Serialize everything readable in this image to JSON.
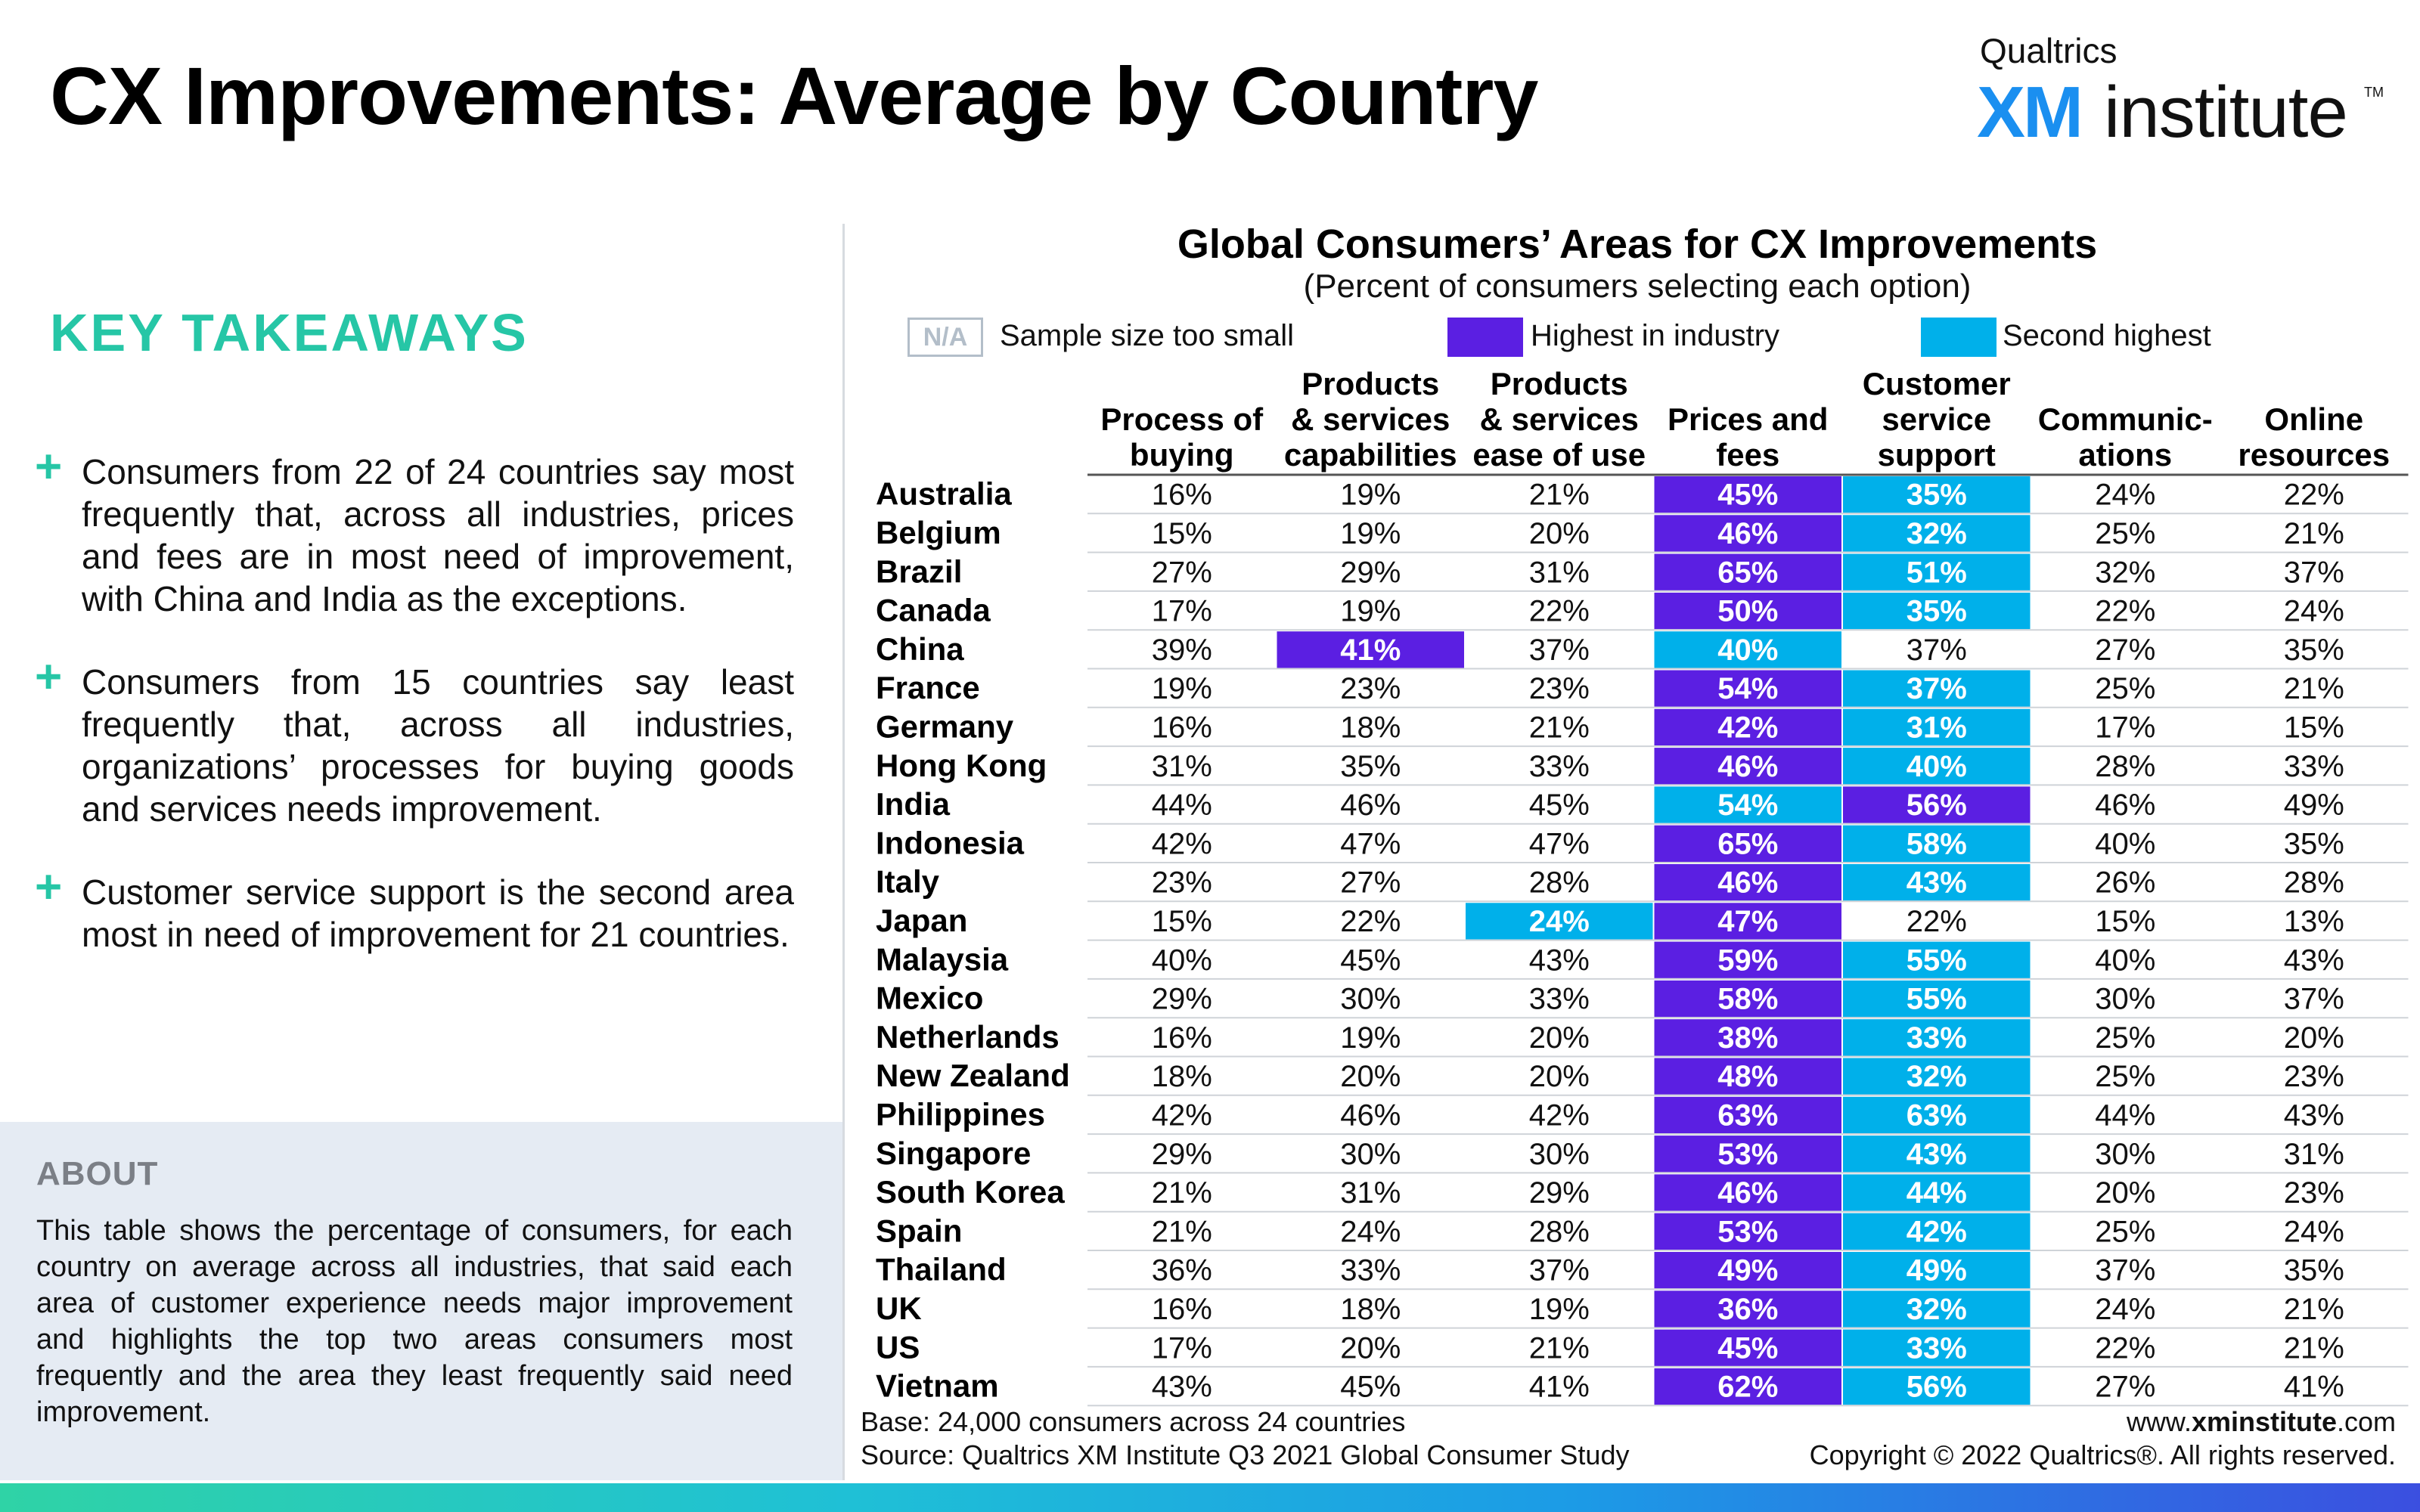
{
  "header": {
    "title": "CX Improvements: Average by Country",
    "logo_brand": "Qualtrics",
    "logo_xm": "XM",
    "logo_institute": "institute",
    "logo_tm": "TM"
  },
  "takeaways": {
    "heading": "KEY TAKEAWAYS",
    "bullets": [
      "Consumers from 22 of 24 countries say most frequently that, across all industries, prices and fees  are in most need of improvement, with China and India as the exceptions.",
      "Consumers from 15 countries say least frequently that, across all industries, organizations’ processes for buying goods and services needs improvement.",
      "Customer service support is the second area most in need of improvement for 21 countries."
    ]
  },
  "about": {
    "heading": "ABOUT",
    "text": "This table shows the percentage of consumers, for each country on average across all industries, that said each area of customer experience needs major improvement and highlights the top two areas consumers most frequently and the area they least frequently said need improvement."
  },
  "legend": {
    "na_label": "N/A",
    "na_text": "Sample size too small",
    "highest_text": "Highest in industry",
    "second_text": "Second highest"
  },
  "colors": {
    "highest": "#5b1fe2",
    "second": "#00b0ea",
    "accent": "#26c6a6"
  },
  "chart_data": {
    "type": "table",
    "title": "Global Consumers’ Areas for CX Improvements",
    "subtitle": "(Percent of consumers selecting each option)",
    "columns": [
      [
        "Process of",
        "buying"
      ],
      [
        "Products",
        "& services",
        "capabilities"
      ],
      [
        "Products",
        "& services",
        "ease of use"
      ],
      [
        "Prices and",
        "fees"
      ],
      [
        "Customer",
        "service",
        "support"
      ],
      [
        "Communic-",
        "ations"
      ],
      [
        "Online",
        "resources"
      ]
    ],
    "rows": [
      {
        "country": "Australia",
        "values": [
          16,
          19,
          21,
          45,
          35,
          24,
          22
        ],
        "highest": 3,
        "second": 4
      },
      {
        "country": "Belgium",
        "values": [
          15,
          19,
          20,
          46,
          32,
          25,
          21
        ],
        "highest": 3,
        "second": 4
      },
      {
        "country": "Brazil",
        "values": [
          27,
          29,
          31,
          65,
          51,
          32,
          37
        ],
        "highest": 3,
        "second": 4
      },
      {
        "country": "Canada",
        "values": [
          17,
          19,
          22,
          50,
          35,
          22,
          24
        ],
        "highest": 3,
        "second": 4
      },
      {
        "country": "China",
        "values": [
          39,
          41,
          37,
          40,
          37,
          27,
          35
        ],
        "highest": 1,
        "second": 3
      },
      {
        "country": "France",
        "values": [
          19,
          23,
          23,
          54,
          37,
          25,
          21
        ],
        "highest": 3,
        "second": 4
      },
      {
        "country": "Germany",
        "values": [
          16,
          18,
          21,
          42,
          31,
          17,
          15
        ],
        "highest": 3,
        "second": 4
      },
      {
        "country": "Hong Kong",
        "values": [
          31,
          35,
          33,
          46,
          40,
          28,
          33
        ],
        "highest": 3,
        "second": 4
      },
      {
        "country": "India",
        "values": [
          44,
          46,
          45,
          54,
          56,
          46,
          49
        ],
        "highest": 4,
        "second": 3
      },
      {
        "country": "Indonesia",
        "values": [
          42,
          47,
          47,
          65,
          58,
          40,
          35
        ],
        "highest": 3,
        "second": 4
      },
      {
        "country": "Italy",
        "values": [
          23,
          27,
          28,
          46,
          43,
          26,
          28
        ],
        "highest": 3,
        "second": 4
      },
      {
        "country": "Japan",
        "values": [
          15,
          22,
          24,
          47,
          22,
          15,
          13
        ],
        "highest": 3,
        "second": 2
      },
      {
        "country": "Malaysia",
        "values": [
          40,
          45,
          43,
          59,
          55,
          40,
          43
        ],
        "highest": 3,
        "second": 4
      },
      {
        "country": "Mexico",
        "values": [
          29,
          30,
          33,
          58,
          55,
          30,
          37
        ],
        "highest": 3,
        "second": 4
      },
      {
        "country": "Netherlands",
        "values": [
          16,
          19,
          20,
          38,
          33,
          25,
          20
        ],
        "highest": 3,
        "second": 4
      },
      {
        "country": "New Zealand",
        "values": [
          18,
          20,
          20,
          48,
          32,
          25,
          23
        ],
        "highest": 3,
        "second": 4
      },
      {
        "country": "Philippines",
        "values": [
          42,
          46,
          42,
          63,
          63,
          44,
          43
        ],
        "highest": 3,
        "second": 4
      },
      {
        "country": "Singapore",
        "values": [
          29,
          30,
          30,
          53,
          43,
          30,
          31
        ],
        "highest": 3,
        "second": 4
      },
      {
        "country": "South Korea",
        "values": [
          21,
          31,
          29,
          46,
          44,
          20,
          23
        ],
        "highest": 3,
        "second": 4
      },
      {
        "country": "Spain",
        "values": [
          21,
          24,
          28,
          53,
          42,
          25,
          24
        ],
        "highest": 3,
        "second": 4
      },
      {
        "country": "Thailand",
        "values": [
          36,
          33,
          37,
          49,
          49,
          37,
          35
        ],
        "highest": 3,
        "second": 4
      },
      {
        "country": "UK",
        "values": [
          16,
          18,
          19,
          36,
          32,
          24,
          21
        ],
        "highest": 3,
        "second": 4
      },
      {
        "country": "US",
        "values": [
          17,
          20,
          21,
          45,
          33,
          22,
          21
        ],
        "highest": 3,
        "second": 4
      },
      {
        "country": "Vietnam",
        "values": [
          43,
          45,
          41,
          62,
          56,
          27,
          41
        ],
        "highest": 3,
        "second": 4
      }
    ]
  },
  "footer": {
    "base": "Base: 24,000 consumers across 24 countries",
    "source": "Source: Qualtrics XM Institute Q3 2021 Global Consumer Study",
    "website_prefix": "www.",
    "website_bold": "xminstitute",
    "website_suffix": ".com",
    "copyright": "Copyright © 2022 Qualtrics®. All rights reserved."
  }
}
